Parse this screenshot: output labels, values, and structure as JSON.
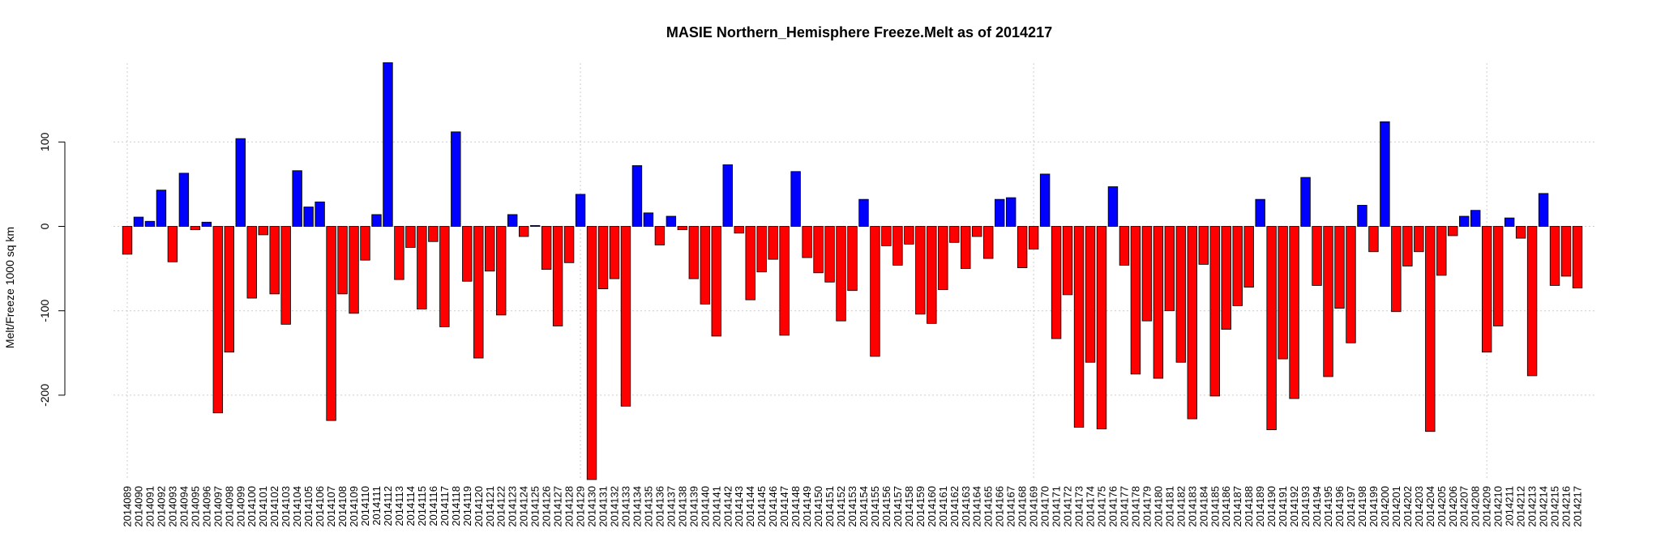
{
  "chart_data": {
    "type": "bar",
    "title": "MASIE Northern_Hemisphere Freeze.Melt as of 2014217",
    "xlabel": "",
    "ylabel": "Melt/Freeze 1000 sq km",
    "ylim": [
      -300,
      195
    ],
    "yticks": [
      -200,
      -100,
      0,
      100
    ],
    "grid": true,
    "positive_color": "#0000ff",
    "negative_color": "#ff0000",
    "categories": [
      "2014089",
      "2014090",
      "2014091",
      "2014092",
      "2014093",
      "2014094",
      "2014095",
      "2014096",
      "2014097",
      "2014098",
      "2014099",
      "2014100",
      "2014101",
      "2014102",
      "2014103",
      "2014104",
      "2014105",
      "2014106",
      "2014107",
      "2014108",
      "2014109",
      "2014110",
      "2014111",
      "2014112",
      "2014113",
      "2014114",
      "2014115",
      "2014116",
      "2014117",
      "2014118",
      "2014119",
      "2014120",
      "2014121",
      "2014122",
      "2014123",
      "2014124",
      "2014125",
      "2014126",
      "2014127",
      "2014128",
      "2014129",
      "2014130",
      "2014131",
      "2014132",
      "2014133",
      "2014134",
      "2014135",
      "2014136",
      "2014137",
      "2014138",
      "2014139",
      "2014140",
      "2014141",
      "2014142",
      "2014143",
      "2014144",
      "2014145",
      "2014146",
      "2014147",
      "2014148",
      "2014149",
      "2014150",
      "2014151",
      "2014152",
      "2014153",
      "2014154",
      "2014155",
      "2014156",
      "2014157",
      "2014158",
      "2014159",
      "2014160",
      "2014161",
      "2014162",
      "2014163",
      "2014164",
      "2014165",
      "2014166",
      "2014167",
      "2014168",
      "2014169",
      "2014170",
      "2014171",
      "2014172",
      "2014173",
      "2014174",
      "2014175",
      "2014176",
      "2014177",
      "2014178",
      "2014179",
      "2014180",
      "2014181",
      "2014182",
      "2014183",
      "2014184",
      "2014185",
      "2014186",
      "2014187",
      "2014188",
      "2014189",
      "2014190",
      "2014191",
      "2014192",
      "2014193",
      "2014194",
      "2014195",
      "2014196",
      "2014197",
      "2014198",
      "2014199",
      "2014200",
      "2014201",
      "2014202",
      "2014203",
      "2014204",
      "2014205",
      "2014206",
      "2014207",
      "2014208",
      "2014209",
      "2014210",
      "2014211",
      "2014212",
      "2014213",
      "2014214",
      "2014215",
      "2014216",
      "2014217"
    ],
    "values": [
      -33,
      11,
      6,
      43,
      -42,
      63,
      -4,
      5,
      -221,
      -149,
      104,
      -85,
      -10,
      -80,
      -116,
      66,
      23,
      29,
      -230,
      -80,
      -103,
      -40,
      14,
      194,
      -63,
      -25,
      -98,
      -18,
      -119,
      112,
      -65,
      -156,
      -53,
      -105,
      14,
      -12,
      1,
      -51,
      -118,
      -43,
      38,
      -300,
      -74,
      -62,
      -213,
      72,
      16,
      -22,
      12,
      -4,
      -62,
      -92,
      -130,
      73,
      -8,
      -87,
      -54,
      -39,
      -129,
      65,
      -37,
      -55,
      -66,
      -112,
      -76,
      32,
      -154,
      -23,
      -46,
      -21,
      -104,
      -115,
      -75,
      -19,
      -50,
      -12,
      -38,
      32,
      34,
      -49,
      -27,
      62,
      -133,
      -81,
      -238,
      -161,
      -240,
      47,
      -46,
      -175,
      -112,
      -180,
      -100,
      -161,
      -228,
      -45,
      -201,
      -122,
      -94,
      -72,
      32,
      -241,
      -157,
      -204,
      58,
      -70,
      -178,
      -97,
      -138,
      25,
      -30,
      124,
      -101,
      -47,
      -30,
      -243,
      -58,
      -11,
      12,
      19,
      -149,
      -118,
      10,
      -14,
      -177,
      39,
      -70,
      -59,
      -73
    ]
  }
}
